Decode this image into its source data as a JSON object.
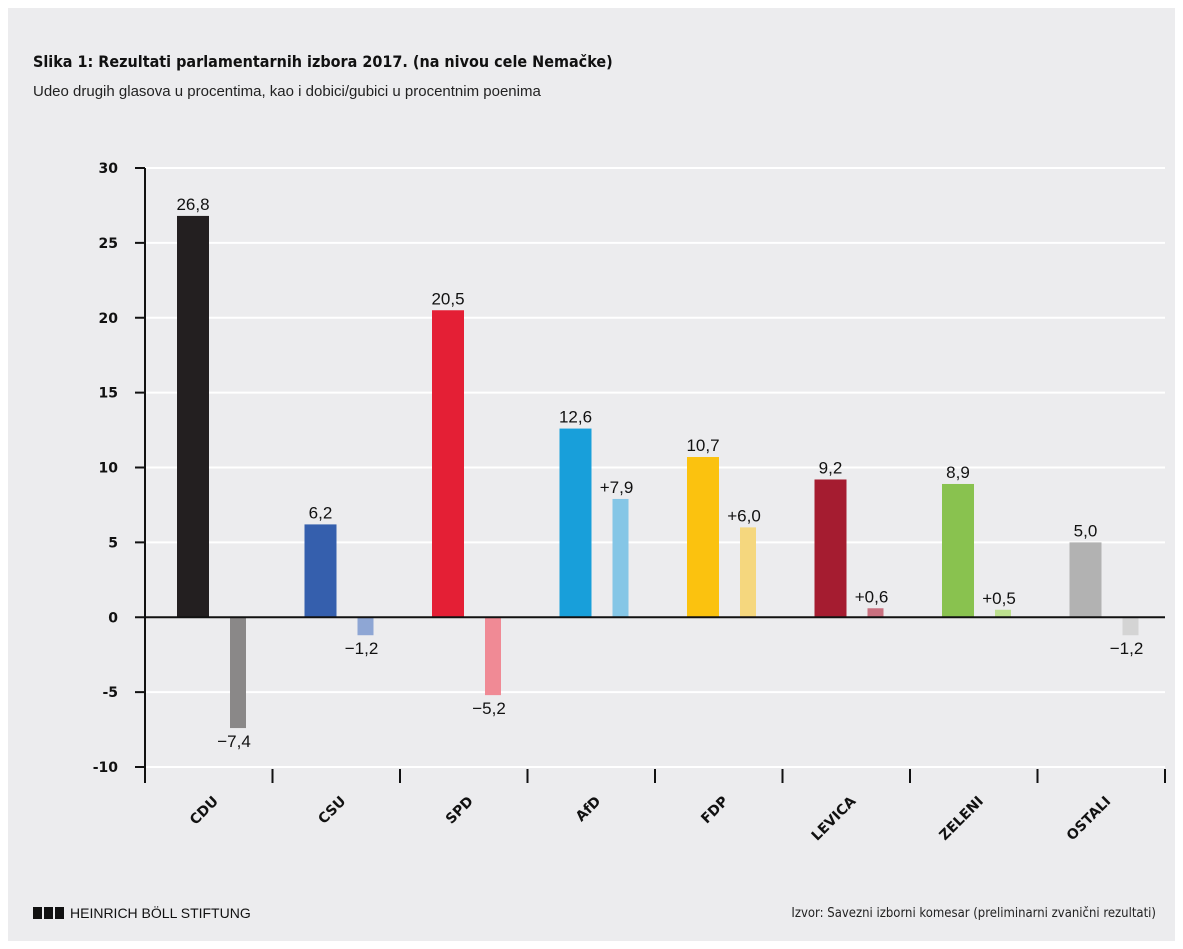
{
  "header": {
    "title": "Slika 1: Rezultati parlamentarnih izbora 2017.  (na nivou cele Nemačke)",
    "subtitle": "Udeo drugih glasova u procentima, kao i dobici/gubici u procentnim poenima"
  },
  "footer": {
    "brand": "HEINRICH BÖLL STIFTUNG",
    "source": "Izvor: Savezni izborni komesar (preliminarni zvanični rezultati)"
  },
  "chart_data": {
    "type": "bar",
    "title": "Slika 1: Rezultati parlamentarnih izbora 2017.  (na nivou cele Nemačke)",
    "subtitle": "Udeo drugih glasova u procentima, kao i dobici/gubici u procentnim poenima",
    "xlabel": "",
    "ylabel": "",
    "ylim": [
      -10,
      30
    ],
    "yticks": [
      30,
      25,
      20,
      15,
      10,
      5,
      0,
      -5,
      -10
    ],
    "ytick_labels": [
      "30",
      "25",
      "20",
      "15",
      "10",
      "5",
      "0",
      "-5",
      "-10"
    ],
    "grid": "horizontal",
    "categories": [
      "CDU",
      "CSU",
      "SPD",
      "AfD",
      "FDP",
      "LEVICA",
      "ZELENI",
      "OSTALI"
    ],
    "series": [
      {
        "values": [
          26.8,
          6.2,
          20.5,
          12.6,
          10.7,
          9.2,
          8.9,
          5.0
        ],
        "labels": [
          "26,8",
          "6,2",
          "20,5",
          "12,6",
          "10,7",
          "9,2",
          "8,9",
          "5,0"
        ],
        "colors": [
          "#231f20",
          "#355fad",
          "#e41f35",
          "#189fda",
          "#fbc20f",
          "#a51c30",
          "#89c24f",
          "#b2b2b2"
        ]
      },
      {
        "values": [
          -7.4,
          -1.2,
          -5.2,
          7.9,
          6.0,
          0.6,
          0.5,
          -1.2
        ],
        "labels": [
          "−7,4",
          "−1,2",
          "−5,2",
          "+7,9",
          "+6,0",
          "+0,6",
          "+0,5",
          "−1,2"
        ],
        "colors": [
          "#8a8888",
          "#8ea6d4",
          "#f08a95",
          "#85c6e6",
          "#f5d77e",
          "#c9707f",
          "#bde08f",
          "#d4d4d4"
        ]
      }
    ]
  }
}
